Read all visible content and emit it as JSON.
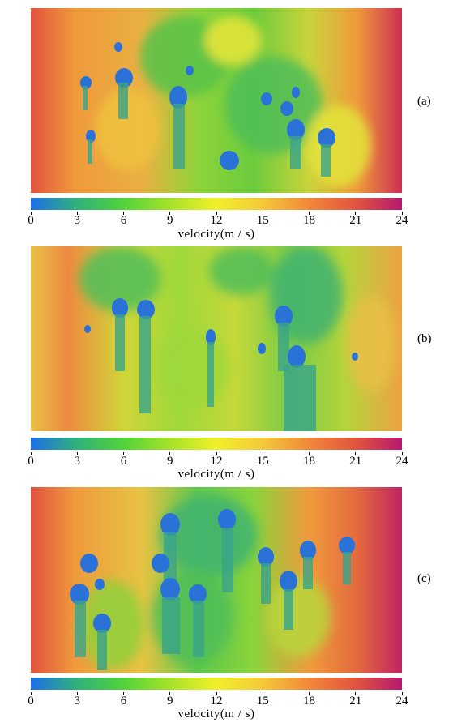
{
  "panels": [
    {
      "id": "a",
      "label": "(a)"
    },
    {
      "id": "b",
      "label": "(b)"
    },
    {
      "id": "c",
      "label": "(c)"
    }
  ],
  "colorbar": {
    "ticks": [
      "0",
      "3",
      "6",
      "9",
      "12",
      "15",
      "18",
      "21",
      "24"
    ],
    "title": "velocity(m / s)",
    "range": [
      0,
      24
    ],
    "colors": [
      "#1e6fe6",
      "#2fb27a",
      "#52d23a",
      "#a6e22a",
      "#f0f02a",
      "#f4c93a",
      "#f0883a",
      "#e2543e",
      "#b8186e"
    ]
  }
}
